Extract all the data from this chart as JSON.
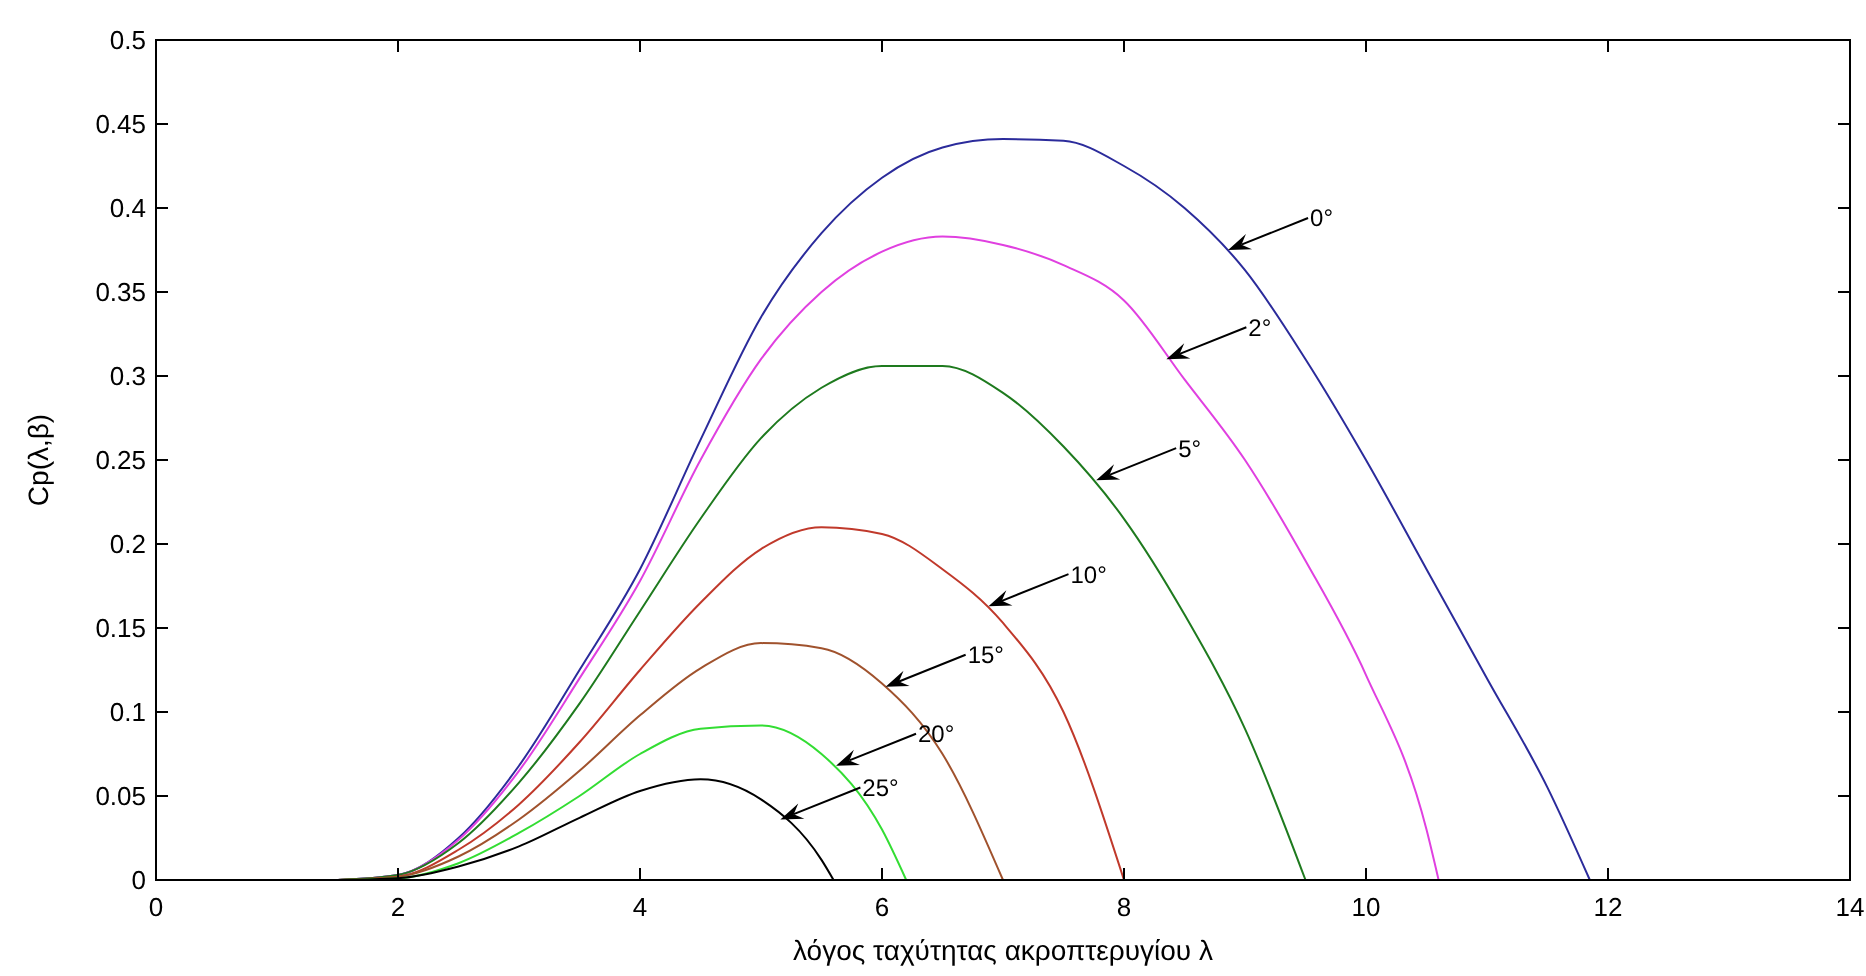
{
  "chart_data": {
    "type": "line",
    "xlabel": "λόγος ταχύτητας ακροπτερυγίου λ",
    "ylabel": "Cp(λ,β)",
    "xlim": [
      0,
      14
    ],
    "ylim": [
      0,
      0.5
    ],
    "xticks": [
      0,
      2,
      4,
      6,
      8,
      10,
      12,
      14
    ],
    "yticks": [
      0,
      0.05,
      0.1,
      0.15,
      0.2,
      0.25,
      0.3,
      0.35,
      0.4,
      0.45,
      0.5
    ],
    "grid": false,
    "marker": "none",
    "line_style": "solid",
    "series": [
      {
        "color": "#2b2b9b",
        "x": [
          1.5,
          2,
          2.5,
          3,
          3.5,
          4,
          4.5,
          5,
          5.5,
          6,
          6.5,
          7,
          7.5,
          8,
          8.5,
          9,
          9.5,
          10,
          10.5,
          11,
          11.5,
          11.85
        ],
        "values": [
          0,
          0.003,
          0.025,
          0.068,
          0.125,
          0.185,
          0.262,
          0.335,
          0.385,
          0.418,
          0.436,
          0.441,
          0.44,
          0.425,
          0.4,
          0.363,
          0.31,
          0.25,
          0.185,
          0.12,
          0.055,
          0
        ]
      },
      {
        "color": "#e040e0",
        "x": [
          1.5,
          2,
          2.5,
          3,
          3.5,
          4,
          4.5,
          5,
          5.5,
          6,
          6.5,
          7,
          7.5,
          8,
          8.5,
          9,
          9.5,
          10,
          10.5,
          10.6
        ],
        "values": [
          0,
          0.003,
          0.024,
          0.065,
          0.12,
          0.178,
          0.25,
          0.31,
          0.35,
          0.374,
          0.383,
          0.378,
          0.366,
          0.345,
          0.298,
          0.25,
          0.19,
          0.122,
          0.03,
          0
        ]
      },
      {
        "color": "#1e7a1e",
        "x": [
          1.5,
          2,
          2.5,
          3,
          3.5,
          4,
          4.5,
          5,
          5.5,
          6,
          6.5,
          7,
          7.5,
          8,
          8.5,
          9,
          9.5
        ],
        "values": [
          0,
          0.003,
          0.022,
          0.058,
          0.105,
          0.16,
          0.215,
          0.263,
          0.293,
          0.306,
          0.306,
          0.29,
          0.258,
          0.215,
          0.158,
          0.09,
          0
        ]
      },
      {
        "color": "#c0392b",
        "x": [
          1.5,
          2,
          2.5,
          3,
          3.5,
          4,
          4.5,
          5,
          5.5,
          6,
          6.5,
          7,
          7.5,
          8
        ],
        "values": [
          0,
          0.002,
          0.018,
          0.045,
          0.082,
          0.125,
          0.165,
          0.197,
          0.21,
          0.206,
          0.185,
          0.153,
          0.1,
          0
        ]
      },
      {
        "color": "#a0522d",
        "x": [
          1.5,
          2,
          2.5,
          3,
          3.5,
          4,
          4.5,
          5,
          5.5,
          6,
          6.5,
          7
        ],
        "values": [
          0,
          0.002,
          0.014,
          0.036,
          0.065,
          0.098,
          0.126,
          0.141,
          0.138,
          0.117,
          0.075,
          0
        ]
      },
      {
        "color": "#33dd33",
        "x": [
          1.5,
          2,
          2.5,
          3,
          3.5,
          4,
          4.5,
          5,
          5.5,
          6,
          6.2
        ],
        "values": [
          0,
          0.001,
          0.01,
          0.028,
          0.05,
          0.075,
          0.09,
          0.092,
          0.075,
          0.03,
          0
        ]
      },
      {
        "color": "#000000",
        "x": [
          0.4,
          1,
          1.5,
          2,
          2.5,
          3,
          3.5,
          4,
          4.5,
          5,
          5.5,
          5.6
        ],
        "values": [
          0,
          0,
          0,
          0.001,
          0.008,
          0.02,
          0.037,
          0.053,
          0.06,
          0.048,
          0.012,
          0
        ]
      }
    ],
    "annotations": [
      {
        "text": "0°",
        "x": 8.86,
        "y": 0.375
      },
      {
        "text": "2°",
        "x": 8.35,
        "y": 0.31
      },
      {
        "text": "5°",
        "x": 7.77,
        "y": 0.238
      },
      {
        "text": "10°",
        "x": 6.88,
        "y": 0.163
      },
      {
        "text": "15°",
        "x": 6.03,
        "y": 0.115
      },
      {
        "text": "20°",
        "x": 5.62,
        "y": 0.068
      },
      {
        "text": "25°",
        "x": 5.16,
        "y": 0.036
      }
    ]
  }
}
